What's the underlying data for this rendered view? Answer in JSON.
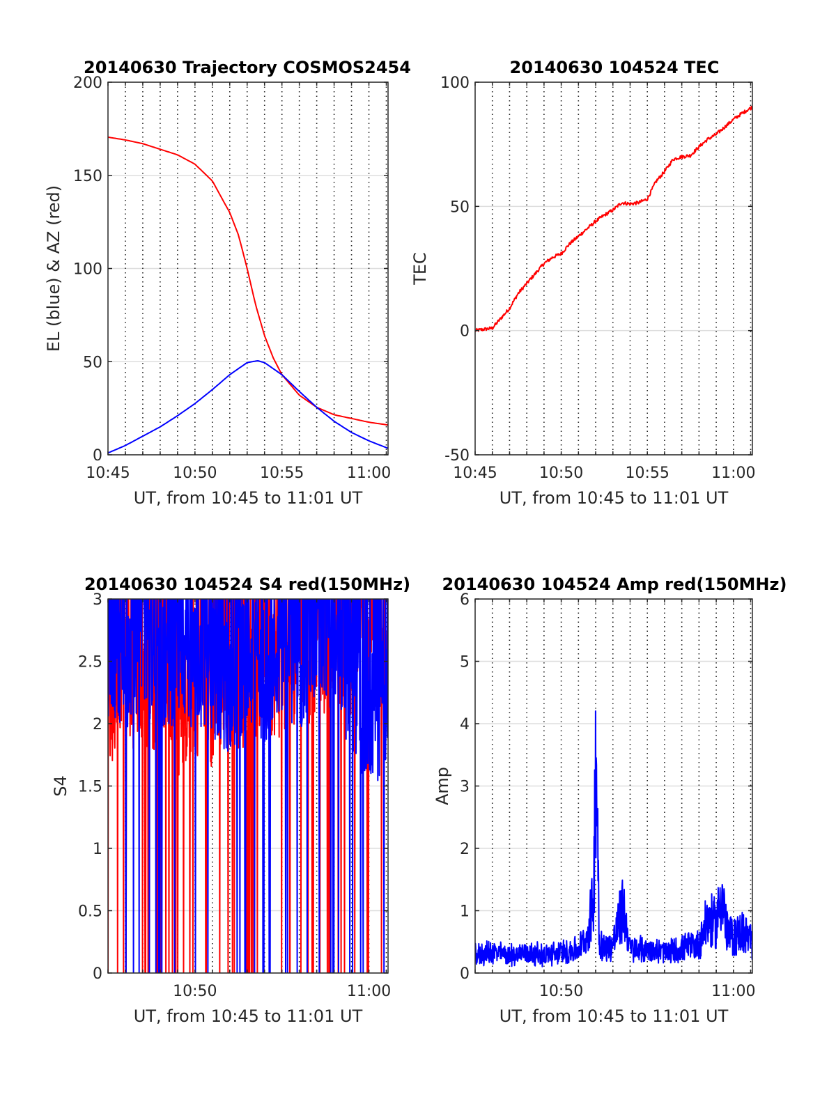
{
  "chart_data": [
    {
      "type": "line",
      "title": "20140630 Trajectory COSMOS2454",
      "xlabel": "UT, from 10:45 to 11:01 UT",
      "ylabel": "EL (blue) & AZ (red)",
      "xlim": [
        0,
        16.1
      ],
      "ylim": [
        0,
        200
      ],
      "x_ticks": [
        0,
        5,
        10,
        15
      ],
      "x_tick_labels": [
        "10:45",
        "10:50",
        "10:55",
        "11:00"
      ],
      "y_ticks": [
        0,
        50,
        100,
        150,
        200
      ],
      "x_unit": "minutes after 10:45 UT",
      "grid": {
        "x": "dotted",
        "y": "solid"
      },
      "series": [
        {
          "color": "#ff0000",
          "x": [
            0,
            1,
            2,
            3,
            4,
            5,
            6,
            7,
            7.5,
            8,
            8.5,
            9,
            9.5,
            10,
            11,
            12,
            13,
            14,
            15,
            16.1
          ],
          "y": [
            170.5,
            169,
            167,
            164,
            161,
            156,
            147,
            130,
            118,
            100,
            80,
            64,
            52,
            43,
            32,
            25.5,
            21.5,
            19.5,
            17.5,
            16
          ]
        },
        {
          "color": "#0000ff",
          "x": [
            0,
            1,
            2,
            3,
            4,
            5,
            6,
            7,
            8,
            8.6,
            9,
            10,
            11,
            12,
            13,
            14,
            15,
            16.1
          ],
          "y": [
            1,
            5,
            10,
            15,
            21,
            27.5,
            35,
            43,
            49.5,
            50.5,
            49.5,
            43,
            34,
            25.5,
            18,
            12,
            7.5,
            3.5
          ]
        }
      ]
    },
    {
      "type": "line",
      "title": "20140630 104524 TEC",
      "xlabel": "UT, from 10:45 to 11:01 UT",
      "ylabel": "TEC",
      "xlim": [
        0,
        16.1
      ],
      "ylim": [
        -50,
        100
      ],
      "x_ticks": [
        0,
        5,
        10,
        15
      ],
      "x_tick_labels": [
        "10:45",
        "10:50",
        "10:55",
        "11:00"
      ],
      "y_ticks": [
        -50,
        0,
        50,
        100
      ],
      "x_unit": "minutes after 10:45 UT",
      "grid": {
        "x": "dotted",
        "y": "solid"
      },
      "series": [
        {
          "color": "#ff0000",
          "x": [
            0,
            0.5,
            1,
            1.5,
            2,
            2.5,
            3,
            3.5,
            4,
            4.5,
            5,
            5.5,
            6,
            6.5,
            7,
            7.5,
            8,
            8.5,
            9,
            9.5,
            10,
            10.5,
            11,
            11.5,
            12,
            12.5,
            13,
            13.5,
            14,
            14.5,
            15,
            15.5,
            16.1
          ],
          "y": [
            0,
            0.5,
            1,
            5,
            9,
            15,
            19,
            23,
            27,
            29.5,
            31,
            35,
            38,
            41,
            44,
            46.5,
            48.5,
            51.5,
            51,
            51.5,
            53,
            60,
            64,
            69,
            70,
            70.5,
            74,
            77,
            79,
            82,
            85,
            87.5,
            90
          ]
        }
      ]
    },
    {
      "type": "line",
      "title": "20140630 104524 S4 red(150MHz)",
      "xlabel": "UT, from 10:45 to 11:01 UT",
      "ylabel": "S4",
      "xlim": [
        0,
        16.1
      ],
      "ylim": [
        0,
        3
      ],
      "x_ticks": [
        5,
        15
      ],
      "x_tick_labels": [
        "10:50",
        "11:00"
      ],
      "y_ticks": [
        0,
        0.5,
        1,
        1.5,
        2,
        2.5,
        3
      ],
      "x_unit": "minutes after 10:45 UT",
      "grid": {
        "x": "dotted",
        "y": "solid"
      },
      "noise": "dense",
      "series": [
        {
          "color": "#ff0000",
          "x": [
            0,
            1,
            2,
            3,
            4,
            5,
            6,
            7,
            8,
            9,
            10,
            11,
            12,
            13,
            14,
            15,
            16.1
          ],
          "y": [
            2.2,
            2.3,
            2.2,
            2.4,
            2.1,
            2.3,
            2.2,
            2.4,
            2.3,
            2.5,
            2.4,
            2.6,
            2.5,
            2.7,
            2.6,
            2.8,
            2.5
          ]
        },
        {
          "color": "#0000ff",
          "x": [
            0,
            1,
            2,
            3,
            4,
            5,
            6,
            7,
            8,
            9,
            10,
            11,
            12,
            13,
            14,
            15,
            16.1
          ],
          "y": [
            2.6,
            2.5,
            2.7,
            2.4,
            2.6,
            2.5,
            2.4,
            2.3,
            2.5,
            2.4,
            2.6,
            2.5,
            2.7,
            2.6,
            2.3,
            2.0,
            2.2
          ]
        }
      ]
    },
    {
      "type": "line",
      "title": "20140630 104524 Amp red(150MHz)",
      "xlabel": "UT, from 10:45 to 11:01 UT",
      "ylabel": "Amp",
      "xlim": [
        0,
        16.1
      ],
      "ylim": [
        0,
        6
      ],
      "x_ticks": [
        5,
        15
      ],
      "x_tick_labels": [
        "10:50",
        "11:00"
      ],
      "y_ticks": [
        0,
        1,
        2,
        3,
        4,
        5,
        6
      ],
      "x_unit": "minutes after 10:45 UT",
      "grid": {
        "x": "dotted",
        "y": "solid"
      },
      "noise": "dense",
      "series": [
        {
          "color": "#0000ff",
          "x": [
            0,
            1,
            2,
            3,
            4,
            5,
            6,
            6.5,
            6.8,
            6.9,
            7,
            7.1,
            7.2,
            7.5,
            8,
            8.6,
            9,
            10,
            11,
            12,
            13,
            13.5,
            14,
            14.3,
            14.6,
            15,
            15.5,
            16.1
          ],
          "y": [
            0.3,
            0.35,
            0.3,
            0.35,
            0.3,
            0.35,
            0.4,
            0.6,
            1.1,
            1.5,
            4.0,
            2.8,
            0.6,
            0.4,
            0.5,
            1.1,
            0.4,
            0.4,
            0.35,
            0.4,
            0.5,
            0.9,
            0.8,
            1.4,
            0.7,
            0.6,
            0.7,
            0.5
          ]
        }
      ]
    }
  ]
}
